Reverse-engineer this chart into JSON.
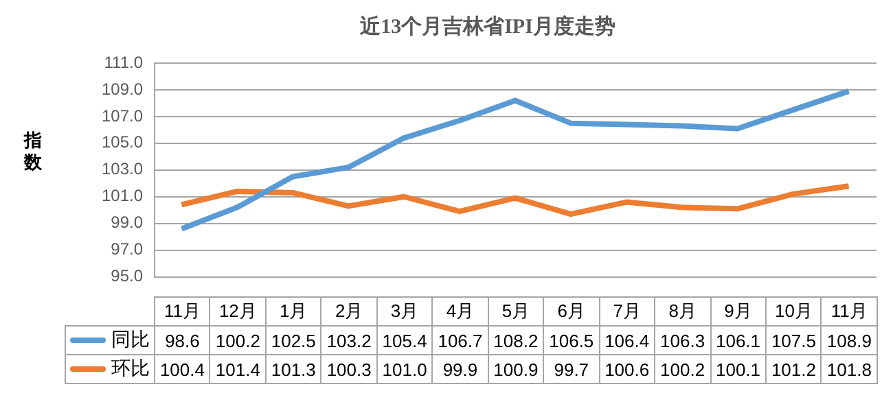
{
  "chart_data": {
    "type": "line",
    "title": "近13个月吉林省IPI月度走势",
    "ylabel": "指数",
    "categories": [
      "11月",
      "12月",
      "1月",
      "2月",
      "3月",
      "4月",
      "5月",
      "6月",
      "7月",
      "8月",
      "9月",
      "10月",
      "11月"
    ],
    "series": [
      {
        "name": "同比",
        "color": "#5b9bd5",
        "values": [
          98.6,
          100.2,
          102.5,
          103.2,
          105.4,
          106.7,
          108.2,
          106.5,
          106.4,
          106.3,
          106.1,
          107.5,
          108.9
        ],
        "value_labels": [
          "98.6",
          "100.2",
          "102.5",
          "103.2",
          "105.4",
          "106.7",
          "108.2",
          "106.5",
          "106.4",
          "106.3",
          "106.1",
          "107.5",
          "108.9"
        ]
      },
      {
        "name": "环比",
        "color": "#ed7d31",
        "values": [
          100.4,
          101.4,
          101.3,
          100.3,
          101.0,
          99.9,
          100.9,
          99.7,
          100.6,
          100.2,
          100.1,
          101.2,
          101.8
        ],
        "value_labels": [
          "100.4",
          "101.4",
          "101.3",
          "100.3",
          "101.0",
          "99.9",
          "100.9",
          "99.7",
          "100.6",
          "100.2",
          "100.1",
          "101.2",
          "101.8"
        ]
      }
    ],
    "ylim": [
      95,
      111
    ],
    "yticks": [
      {
        "value": 95,
        "label": "95.0"
      },
      {
        "value": 97,
        "label": "97.0"
      },
      {
        "value": 99,
        "label": "99.0"
      },
      {
        "value": 101,
        "label": "101.0"
      },
      {
        "value": 103,
        "label": "103.0"
      },
      {
        "value": 105,
        "label": "105.0"
      },
      {
        "value": 107,
        "label": "107.0"
      },
      {
        "value": 109,
        "label": "109.0"
      },
      {
        "value": 111,
        "label": "111.0"
      }
    ],
    "grid": "y",
    "legend": "bottom",
    "marker": "none",
    "line_style": "solid"
  }
}
